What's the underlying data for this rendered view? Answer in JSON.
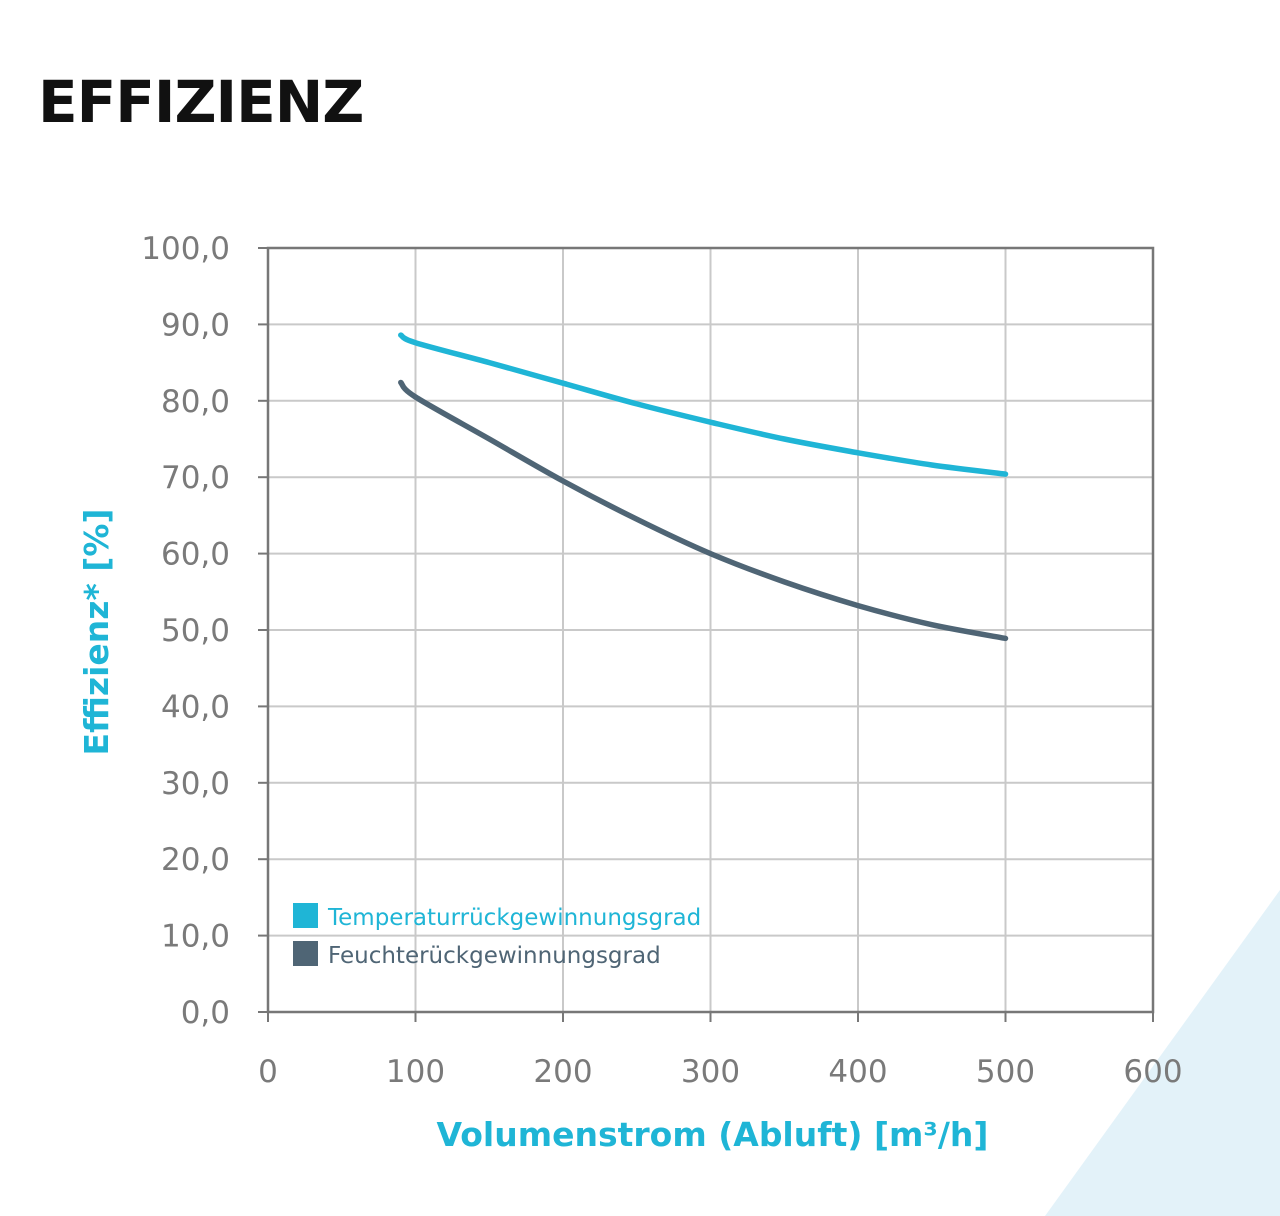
{
  "page": {
    "title": "EFFIZIENZ"
  },
  "colors": {
    "accent": "#1fb5d6",
    "dark": "#4f6575",
    "grid": "#c9c9c9",
    "frame": "#777777",
    "corner": "#e3f2f9"
  },
  "chart_data": {
    "type": "line",
    "title": "",
    "xlabel": "Volumenstrom (Abluft) [m³/h]",
    "ylabel": "Effizienz* [%]",
    "xlim": [
      0,
      600
    ],
    "ylim": [
      0,
      100
    ],
    "xticks": [
      0,
      100,
      200,
      300,
      400,
      500,
      600
    ],
    "yticks": [
      0,
      10,
      20,
      30,
      40,
      50,
      60,
      70,
      80,
      90,
      100
    ],
    "xtick_labels": [
      "0",
      "100",
      "200",
      "300",
      "400",
      "500",
      "600"
    ],
    "ytick_labels": [
      "0,0",
      "10,0",
      "20,0",
      "30,0",
      "40,0",
      "50,0",
      "60,0",
      "70,0",
      "80,0",
      "90,0",
      "100,0"
    ],
    "grid": true,
    "legend_position": "bottom-left",
    "series": [
      {
        "name": "Temperaturrückgewinnungsgrad",
        "color": "#1fb5d6",
        "x": [
          90,
          100,
          150,
          200,
          250,
          300,
          350,
          400,
          450,
          500
        ],
        "y": [
          88.6,
          87.6,
          85.0,
          82.3,
          79.6,
          77.2,
          75.0,
          73.2,
          71.6,
          70.4
        ]
      },
      {
        "name": "Feuchterückgewinnungsgrad",
        "color": "#4f6575",
        "x": [
          90,
          100,
          150,
          200,
          250,
          300,
          350,
          400,
          450,
          500
        ],
        "y": [
          82.4,
          80.5,
          75.0,
          69.5,
          64.5,
          60.0,
          56.3,
          53.2,
          50.7,
          48.9
        ]
      }
    ]
  }
}
